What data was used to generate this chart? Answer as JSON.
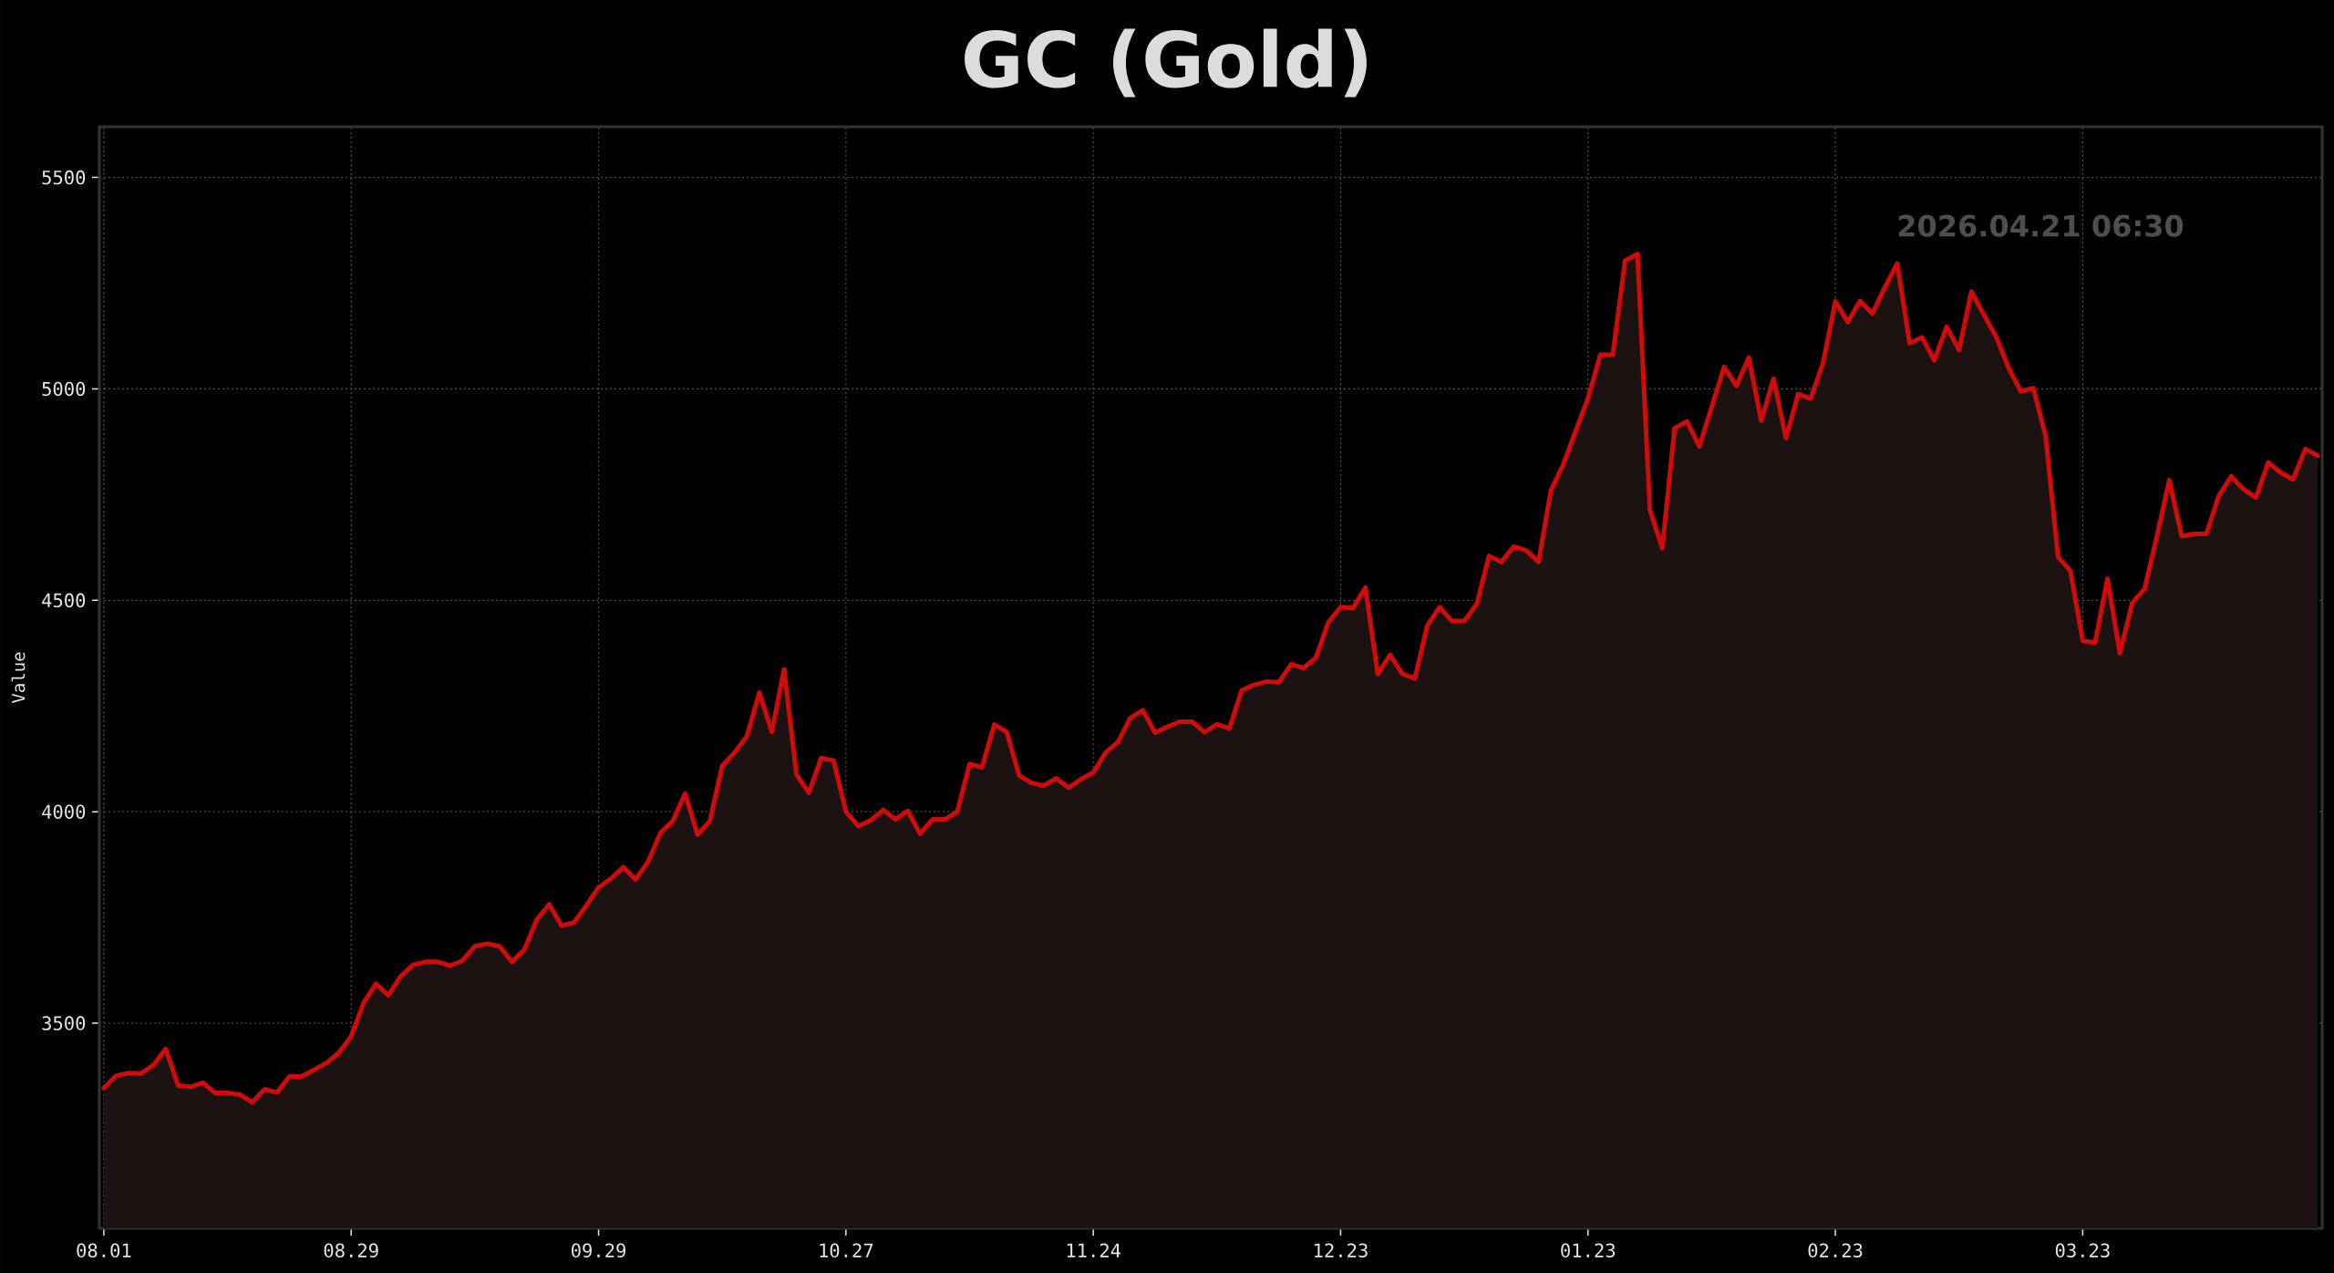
{
  "chart_data": {
    "type": "area",
    "title": "GC (Gold)",
    "ylabel": "Value",
    "categories": [
      "08.01",
      null,
      null,
      null,
      null,
      null,
      null,
      null,
      null,
      null,
      null,
      null,
      null,
      null,
      null,
      null,
      null,
      null,
      null,
      null,
      "08.29",
      null,
      null,
      null,
      null,
      null,
      null,
      null,
      null,
      null,
      null,
      null,
      null,
      null,
      null,
      null,
      null,
      null,
      null,
      null,
      "09.29",
      null,
      null,
      null,
      null,
      null,
      null,
      null,
      null,
      null,
      null,
      null,
      null,
      null,
      null,
      null,
      null,
      null,
      null,
      null,
      "10.27",
      null,
      null,
      null,
      null,
      null,
      null,
      null,
      null,
      null,
      null,
      null,
      null,
      null,
      null,
      null,
      null,
      null,
      null,
      null,
      "11.24",
      null,
      null,
      null,
      null,
      null,
      null,
      null,
      null,
      null,
      null,
      null,
      null,
      null,
      null,
      null,
      null,
      null,
      null,
      null,
      "12.23",
      null,
      null,
      null,
      null,
      null,
      null,
      null,
      null,
      null,
      null,
      null,
      null,
      null,
      null,
      null,
      null,
      null,
      null,
      null,
      "01.23",
      null,
      null,
      null,
      null,
      null,
      null,
      null,
      null,
      null,
      null,
      null,
      null,
      null,
      null,
      null,
      null,
      null,
      null,
      null,
      "02.23",
      null,
      null,
      null,
      null,
      null,
      null,
      null,
      null,
      null,
      null,
      null,
      null,
      null,
      null,
      null,
      null,
      null,
      null,
      null,
      "03.23",
      null,
      null,
      null,
      null,
      null,
      null,
      null,
      null,
      null,
      null,
      null,
      null,
      null,
      null,
      null,
      null,
      null,
      null,
      null
    ],
    "values": [
      3347,
      3376,
      3382,
      3381,
      3401,
      3439,
      3353,
      3349,
      3359,
      3335,
      3335,
      3331,
      3313,
      3344,
      3336,
      3374,
      3374,
      3390,
      3406,
      3430,
      3469,
      3548,
      3593,
      3566,
      3611,
      3638,
      3645,
      3645,
      3636,
      3648,
      3682,
      3688,
      3682,
      3645,
      3674,
      3745,
      3781,
      3731,
      3738,
      3778,
      3821,
      3842,
      3869,
      3840,
      3882,
      3950,
      3978,
      4043,
      3946,
      3978,
      4109,
      4140,
      4179,
      4282,
      4189,
      4337,
      4088,
      4045,
      4127,
      4121,
      4000,
      3966,
      3980,
      4004,
      3982,
      4002,
      3948,
      3982,
      3982,
      4000,
      4113,
      4105,
      4206,
      4189,
      4086,
      4068,
      4062,
      4079,
      4057,
      4077,
      4093,
      4140,
      4165,
      4222,
      4240,
      4187,
      4201,
      4213,
      4213,
      4188,
      4207,
      4197,
      4287,
      4300,
      4308,
      4306,
      4349,
      4340,
      4364,
      4448,
      4484,
      4482,
      4530,
      4326,
      4371,
      4326,
      4315,
      4440,
      4484,
      4451,
      4451,
      4491,
      4605,
      4591,
      4627,
      4618,
      4591,
      4760,
      4821,
      4900,
      4978,
      5081,
      5081,
      5303,
      5319,
      4715,
      4623,
      4907,
      4923,
      4864,
      4957,
      5052,
      5007,
      5074,
      4925,
      5024,
      4884,
      4988,
      4977,
      5061,
      5207,
      5158,
      5208,
      5178,
      5240,
      5296,
      5108,
      5122,
      5068,
      5147,
      5092,
      5230,
      5176,
      5123,
      5050,
      4994,
      5002,
      4889,
      4603,
      4570,
      4404,
      4400,
      4551,
      4375,
      4494,
      4527,
      4652,
      4784,
      4652,
      4657,
      4657,
      4747,
      4793,
      4763,
      4743,
      4826,
      4802,
      4786,
      4858,
      4842
    ],
    "color": "#d10a0a",
    "ylim": [
      3015,
      5620
    ],
    "yticks": [
      3500,
      4000,
      4500,
      5000,
      5500
    ],
    "grid": true,
    "annotations": [
      "2026.04.21 06:30"
    ]
  }
}
